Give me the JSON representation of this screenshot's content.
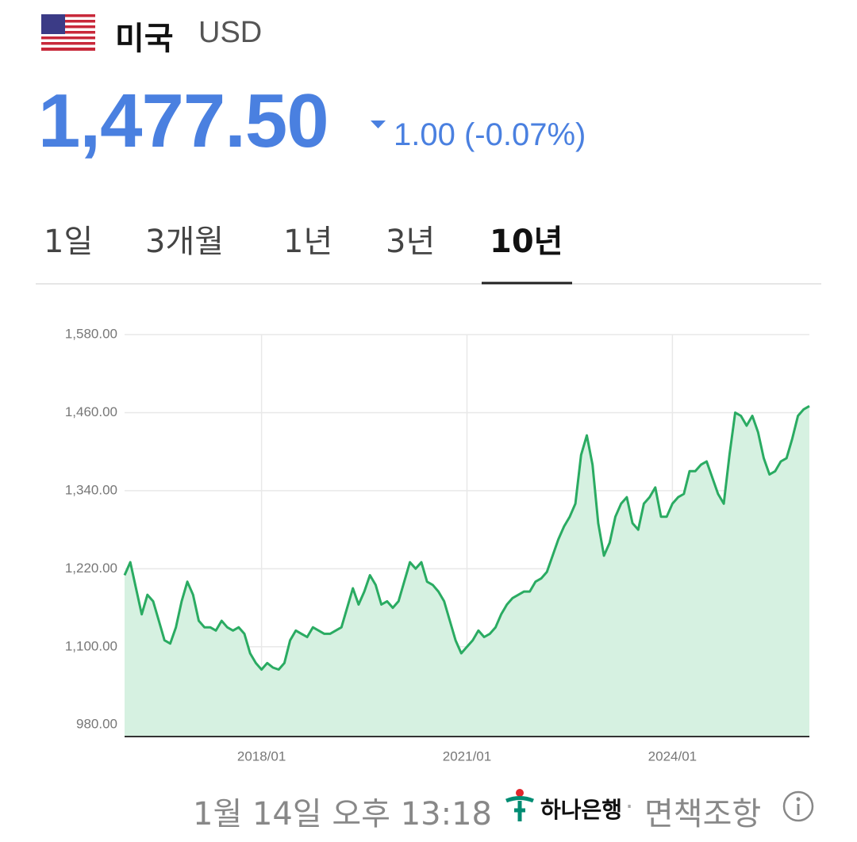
{
  "header": {
    "country": "미국",
    "currency": "USD"
  },
  "quote": {
    "price": "1,477.50",
    "change": "1.00 (-0.07%)"
  },
  "tabs": [
    "1일",
    "3개월",
    "1년",
    "3년",
    "10년"
  ],
  "chart_data": {
    "type": "area",
    "x": [
      "2016/01",
      "2016/02",
      "2016/03",
      "2016/04",
      "2016/05",
      "2016/06",
      "2016/07",
      "2016/08",
      "2016/09",
      "2016/10",
      "2016/11",
      "2016/12",
      "2017/01",
      "2017/02",
      "2017/03",
      "2017/04",
      "2017/05",
      "2017/06",
      "2017/07",
      "2017/08",
      "2017/09",
      "2017/10",
      "2017/11",
      "2017/12",
      "2018/01",
      "2018/02",
      "2018/03",
      "2018/04",
      "2018/05",
      "2018/06",
      "2018/07",
      "2018/08",
      "2018/09",
      "2018/10",
      "2018/11",
      "2018/12",
      "2019/01",
      "2019/02",
      "2019/03",
      "2019/04",
      "2019/05",
      "2019/06",
      "2019/07",
      "2019/08",
      "2019/09",
      "2019/10",
      "2019/11",
      "2019/12",
      "2020/01",
      "2020/02",
      "2020/03",
      "2020/04",
      "2020/05",
      "2020/06",
      "2020/07",
      "2020/08",
      "2020/09",
      "2020/10",
      "2020/11",
      "2020/12",
      "2021/01",
      "2021/02",
      "2021/03",
      "2021/04",
      "2021/05",
      "2021/06",
      "2021/07",
      "2021/08",
      "2021/09",
      "2021/10",
      "2021/11",
      "2021/12",
      "2022/01",
      "2022/02",
      "2022/03",
      "2022/04",
      "2022/05",
      "2022/06",
      "2022/07",
      "2022/08",
      "2022/09",
      "2022/10",
      "2022/11",
      "2022/12",
      "2023/01",
      "2023/02",
      "2023/03",
      "2023/04",
      "2023/05",
      "2023/06",
      "2023/07",
      "2023/08",
      "2023/09",
      "2023/10",
      "2023/11",
      "2023/12",
      "2024/01",
      "2024/02",
      "2024/03",
      "2024/04",
      "2024/05",
      "2024/06",
      "2024/07",
      "2024/08",
      "2024/09",
      "2024/10",
      "2024/11",
      "2024/12",
      "2025/01",
      "2025/02",
      "2025/03",
      "2025/04",
      "2025/05",
      "2025/06",
      "2025/07",
      "2025/08",
      "2025/09",
      "2025/10",
      "2025/11",
      "2025/12",
      "2026/01"
    ],
    "series": [
      {
        "color": "#2aab62",
        "fill": "#d6f1e1",
        "values": [
          1210,
          1230,
          1190,
          1150,
          1180,
          1170,
          1140,
          1110,
          1105,
          1130,
          1170,
          1200,
          1180,
          1140,
          1130,
          1130,
          1125,
          1140,
          1130,
          1125,
          1130,
          1120,
          1090,
          1075,
          1065,
          1075,
          1068,
          1065,
          1075,
          1110,
          1125,
          1120,
          1115,
          1130,
          1125,
          1120,
          1120,
          1125,
          1130,
          1160,
          1190,
          1165,
          1185,
          1210,
          1195,
          1165,
          1170,
          1160,
          1170,
          1200,
          1230,
          1220,
          1230,
          1200,
          1195,
          1185,
          1170,
          1140,
          1110,
          1090,
          1100,
          1110,
          1125,
          1115,
          1120,
          1130,
          1150,
          1165,
          1175,
          1180,
          1185,
          1185,
          1200,
          1205,
          1215,
          1240,
          1265,
          1285,
          1300,
          1320,
          1395,
          1425,
          1380,
          1290,
          1240,
          1260,
          1300,
          1320,
          1330,
          1290,
          1280,
          1320,
          1330,
          1345,
          1300,
          1300,
          1320,
          1330,
          1335,
          1370,
          1370,
          1380,
          1385,
          1360,
          1335,
          1320,
          1395,
          1460,
          1455,
          1440,
          1455,
          1430,
          1390,
          1365,
          1370,
          1385,
          1390,
          1420,
          1455,
          1465,
          1470
        ]
      }
    ],
    "ylim": [
      962,
      1580
    ],
    "yticks": [
      {
        "value": 980,
        "label": "980.00"
      },
      {
        "value": 1100,
        "label": "1,100.00"
      },
      {
        "value": 1220,
        "label": "1,220.00"
      },
      {
        "value": 1340,
        "label": "1,340.00"
      },
      {
        "value": 1460,
        "label": "1,460.00"
      },
      {
        "value": 1580,
        "label": "1,580.00"
      }
    ],
    "xticks": [
      "2018/01",
      "2021/01",
      "2024/01"
    ],
    "grid": true
  },
  "footer": {
    "timestamp": "1월 14일 오후 13:18",
    "bank": "하나은행",
    "separator": "·",
    "disclaimer": "면책조항"
  }
}
